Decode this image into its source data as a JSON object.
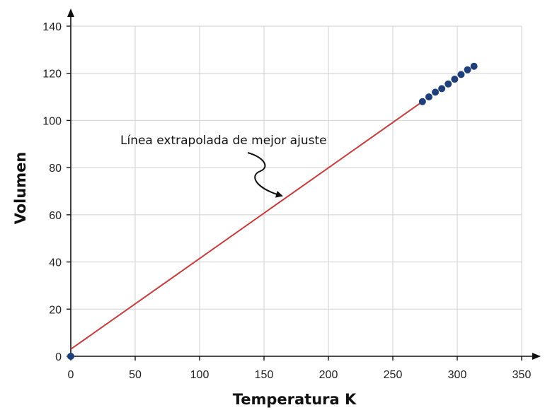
{
  "chart_data": {
    "type": "scatter",
    "xlabel": "Temperatura K",
    "ylabel": "Volumen",
    "xlim": [
      0,
      350
    ],
    "ylim": [
      0,
      140
    ],
    "x_ticks": [
      0,
      50,
      100,
      150,
      200,
      250,
      300,
      350
    ],
    "y_ticks": [
      0,
      20,
      40,
      60,
      80,
      100,
      120,
      140
    ],
    "grid": true,
    "point_color": "#1f3f7a",
    "line_color": "#c43c3c",
    "points": [
      {
        "x": 0,
        "y": 0
      },
      {
        "x": 273,
        "y": 108
      },
      {
        "x": 278,
        "y": 110
      },
      {
        "x": 283,
        "y": 112
      },
      {
        "x": 288,
        "y": 113.5
      },
      {
        "x": 293,
        "y": 115.5
      },
      {
        "x": 298,
        "y": 117.5
      },
      {
        "x": 303,
        "y": 119.5
      },
      {
        "x": 308,
        "y": 121.5
      },
      {
        "x": 313,
        "y": 123
      }
    ],
    "fit_line": {
      "x": [
        0,
        273
      ],
      "y": [
        3,
        108
      ]
    },
    "annotations": [
      {
        "text": "Línea extrapolada de mejor ajuste",
        "x": 165,
        "y": 67
      }
    ]
  }
}
